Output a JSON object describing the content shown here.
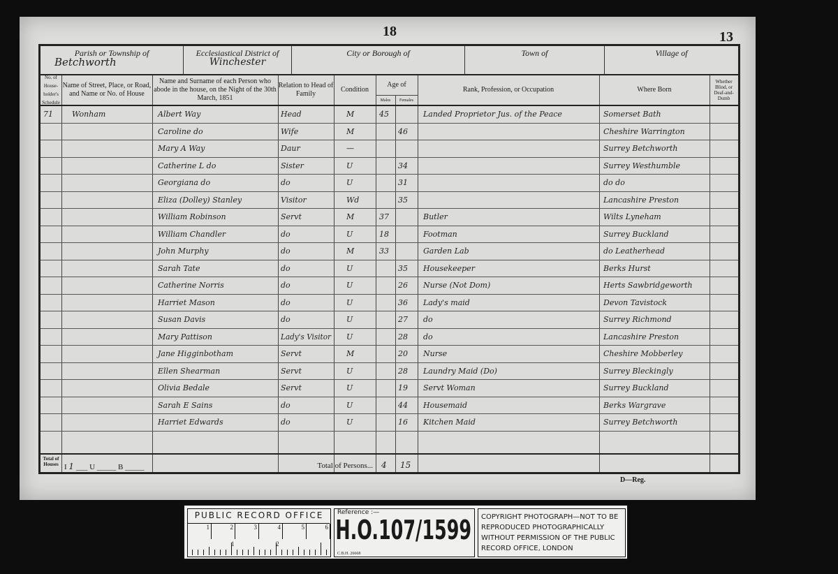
{
  "page": {
    "folio": "18",
    "page_number": "13",
    "footer_mark": "D—Reg."
  },
  "header": {
    "parish_label": "Parish or Township of",
    "parish_value": "Betchworth",
    "eccl_label": "Ecclesiastical District of",
    "eccl_value": "Winchester",
    "city_label": "City or Borough of",
    "town_label": "Town of",
    "village_label": "Village of"
  },
  "columns": {
    "schedule": "No. of House-holder's Schedule",
    "street": "Name of Street, Place, or Road, and Name or No. of House",
    "name": "Name and Surname of each Person who abode in the house, on the Night of the 30th March, 1851",
    "relation": "Relation to Head of Family",
    "condition": "Condition",
    "age": "Age of",
    "males": "Males",
    "females": "Females",
    "occupation": "Rank, Profession, or Occupation",
    "born": "Where Born",
    "blind": "Whether Blind, or Deaf-and-Dumb"
  },
  "rows": [
    {
      "schedule": "71",
      "street": "Wonham",
      "name": "Albert Way",
      "relation": "Head",
      "condition": "M",
      "male": "45",
      "female": "",
      "occupation": "Landed Proprietor Jus. of the Peace",
      "born": "Somerset Bath"
    },
    {
      "name": "Caroline do",
      "relation": "Wife",
      "condition": "M",
      "male": "",
      "female": "46",
      "occupation": "",
      "born": "Cheshire Warrington"
    },
    {
      "name": "Mary A Way",
      "relation": "Daur",
      "condition": "—",
      "male": "",
      "female": "",
      "occupation": "",
      "born": "Surrey Betchworth"
    },
    {
      "name": "Catherine L do",
      "relation": "Sister",
      "condition": "U",
      "male": "",
      "female": "34",
      "occupation": "",
      "born": "Surrey Westhumble"
    },
    {
      "name": "Georgiana do",
      "relation": "do",
      "condition": "U",
      "male": "",
      "female": "31",
      "occupation": "",
      "born": "do do"
    },
    {
      "name": "Eliza (Dolley) Stanley",
      "relation": "Visitor",
      "condition": "Wd",
      "male": "",
      "female": "35",
      "occupation": "",
      "born": "Lancashire Preston"
    },
    {
      "name": "William Robinson",
      "relation": "Servt",
      "condition": "M",
      "male": "37",
      "female": "",
      "occupation": "Butler",
      "born": "Wilts Lyneham"
    },
    {
      "name": "William Chandler",
      "relation": "do",
      "condition": "U",
      "male": "18",
      "female": "",
      "occupation": "Footman",
      "born": "Surrey Buckland"
    },
    {
      "name": "John Murphy",
      "relation": "do",
      "condition": "M",
      "male": "33",
      "female": "",
      "occupation": "Garden Lab",
      "born": "do Leatherhead"
    },
    {
      "name": "Sarah Tate",
      "relation": "do",
      "condition": "U",
      "male": "",
      "female": "35",
      "occupation": "Housekeeper",
      "born": "Berks Hurst"
    },
    {
      "name": "Catherine Norris",
      "relation": "do",
      "condition": "U",
      "male": "",
      "female": "26",
      "occupation": "Nurse (Not Dom)",
      "born": "Herts Sawbridgeworth"
    },
    {
      "name": "Harriet Mason",
      "relation": "do",
      "condition": "U",
      "male": "",
      "female": "36",
      "occupation": "Lady's maid",
      "born": "Devon Tavistock"
    },
    {
      "name": "Susan Davis",
      "relation": "do",
      "condition": "U",
      "male": "",
      "female": "27",
      "occupation": "do",
      "born": "Surrey Richmond"
    },
    {
      "name": "Mary Pattison",
      "relation": "Lady's Visitor",
      "condition": "U",
      "male": "",
      "female": "28",
      "occupation": "do",
      "born": "Lancashire Preston"
    },
    {
      "name": "Jane Higginbotham",
      "relation": "Servt",
      "condition": "M",
      "male": "",
      "female": "20",
      "occupation": "Nurse",
      "born": "Cheshire Mobberley"
    },
    {
      "name": "Ellen Shearman",
      "relation": "Servt",
      "condition": "U",
      "male": "",
      "female": "28",
      "occupation": "Laundry Maid (Do)",
      "born": "Surrey Bleckingly"
    },
    {
      "name": "Olivia Bedale",
      "relation": "Servt",
      "condition": "U",
      "male": "",
      "female": "19",
      "occupation": "Servt Woman",
      "born": "Surrey Buckland"
    },
    {
      "name": "Sarah E Sains",
      "relation": "do",
      "condition": "U",
      "male": "",
      "female": "44",
      "occupation": "Housemaid",
      "born": "Berks Wargrave"
    },
    {
      "name": "Harriet Edwards",
      "relation": "do",
      "condition": "U",
      "male": "",
      "female": "16",
      "occupation": "Kitchen Maid",
      "born": "Surrey Betchworth"
    }
  ],
  "totals": {
    "houses_label": "Total of Houses",
    "inhabited": "I",
    "inhabited_value": "1",
    "uninhabited": "U",
    "building": "B",
    "persons_label": "Total of Persons...",
    "males": "4",
    "females": "15"
  },
  "strip": {
    "office": "PUBLIC RECORD OFFICE",
    "scale_top": [
      "1",
      "2",
      "3",
      "4",
      "5",
      "6"
    ],
    "scale_bottom": [
      "1",
      "2"
    ],
    "reference_label": "Reference :—",
    "reference": "H.O.107/1599",
    "code": "C.B.H. 26668",
    "copyright": "COPYRIGHT PHOTOGRAPH—NOT TO BE REPRODUCED PHOTOGRAPHICALLY WITHOUT PERMISSION OF THE PUBLIC RECORD OFFICE, LONDON"
  }
}
